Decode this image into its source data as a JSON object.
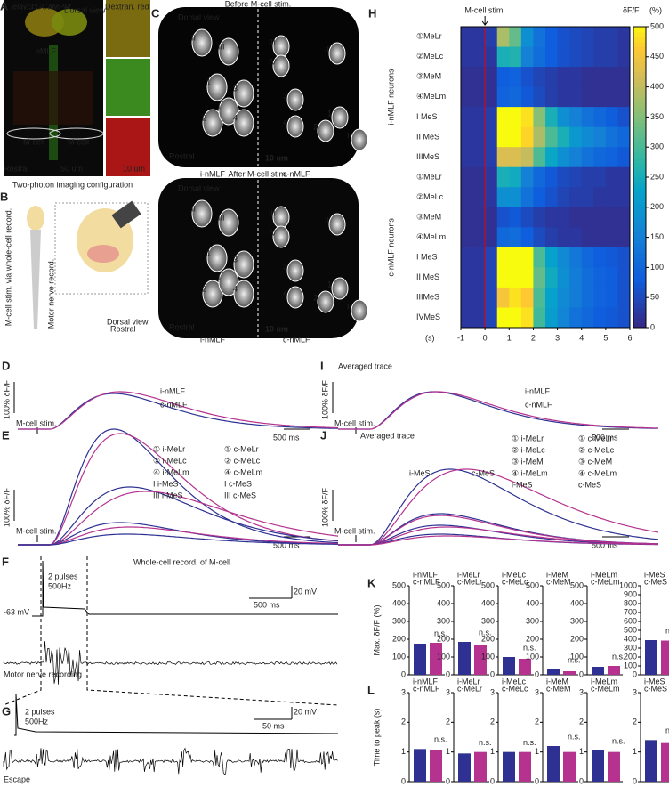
{
  "colors": {
    "i": "#2e3192",
    "c": "#b5338f"
  },
  "A": {
    "label": "A",
    "gcamp": "elavl3:GCaMP6f",
    "dextran": "Dextran. red",
    "dorsal": "Dorsal view",
    "nmlf": "nMLF",
    "mcell_left": "M-cell",
    "mcell_right": "M-cell",
    "rostral": "Rostral",
    "scale1": "50 um",
    "scale2": "10 um"
  },
  "B": {
    "label": "B",
    "title": "Two-photon imaging configuration",
    "stim": "M-cell stim. via whole-cell record.",
    "motor": "Motor nerve record.",
    "dorsal": "Dorsal view",
    "rostral": "Rostral"
  },
  "C": {
    "label": "C",
    "before": "Before M-cell stim.",
    "after": "After M-cell stim.",
    "dorsal": "Dorsal view",
    "rostral": "Rostral",
    "scale": "10 um",
    "left": "i-nMLF",
    "right": "c-nMLF",
    "left_marks": [
      "II",
      "III",
      "1",
      "3",
      "2",
      "I",
      "4"
    ],
    "right_marks": [
      "III",
      "IV",
      "II",
      "3",
      "4",
      "1",
      "2",
      "I"
    ]
  },
  "H": {
    "label": "H",
    "stim": "M-cell stim.",
    "unit": "δF/F",
    "unit_pct": "(%)",
    "group_i": "i-nMLF neurons",
    "group_c": "c-nMLF neurons",
    "xlabel": "(s)",
    "xlim": [
      -1,
      6
    ],
    "xticks": [
      -1,
      0,
      1,
      2,
      3,
      4,
      5,
      6
    ],
    "clim": [
      0,
      500
    ],
    "cticks": [
      0,
      50,
      100,
      150,
      200,
      250,
      300,
      350,
      400,
      450,
      500
    ],
    "rows_i": [
      {
        "label": "①MeLr",
        "values": [
          20,
          20,
          30,
          380,
          320,
          180,
          120,
          80,
          60,
          50,
          40,
          30,
          30,
          20
        ]
      },
      {
        "label": "②MeLc",
        "values": [
          20,
          20,
          20,
          250,
          260,
          150,
          110,
          80,
          60,
          50,
          40,
          30,
          30,
          20
        ]
      },
      {
        "label": "③MeM",
        "values": [
          10,
          10,
          10,
          80,
          90,
          60,
          40,
          30,
          20,
          20,
          10,
          10,
          10,
          10
        ]
      },
      {
        "label": "④MeLm",
        "values": [
          10,
          10,
          10,
          90,
          100,
          70,
          50,
          30,
          20,
          20,
          10,
          10,
          10,
          10
        ]
      },
      {
        "label": "I MeS",
        "values": [
          20,
          20,
          30,
          500,
          500,
          480,
          350,
          250,
          180,
          150,
          120,
          100,
          80,
          60
        ]
      },
      {
        "label": "II MeS",
        "values": [
          20,
          20,
          30,
          500,
          500,
          470,
          380,
          300,
          250,
          200,
          170,
          150,
          120,
          100
        ]
      },
      {
        "label": "IIIMeS",
        "values": [
          20,
          20,
          30,
          420,
          420,
          400,
          300,
          230,
          180,
          150,
          120,
          100,
          90,
          70
        ]
      }
    ],
    "rows_c": [
      {
        "label": "①MeLr",
        "values": [
          10,
          10,
          20,
          250,
          240,
          150,
          100,
          70,
          50,
          40,
          30,
          30,
          20,
          20
        ]
      },
      {
        "label": "②MeLc",
        "values": [
          10,
          10,
          20,
          180,
          180,
          120,
          80,
          60,
          40,
          30,
          30,
          20,
          20,
          20
        ]
      },
      {
        "label": "③MeM",
        "values": [
          10,
          10,
          10,
          60,
          70,
          50,
          30,
          20,
          20,
          10,
          10,
          10,
          10,
          10
        ]
      },
      {
        "label": "④MeLm",
        "values": [
          10,
          10,
          10,
          100,
          110,
          80,
          50,
          30,
          20,
          20,
          10,
          10,
          10,
          10
        ]
      },
      {
        "label": "I MeS",
        "values": [
          20,
          20,
          40,
          500,
          500,
          500,
          300,
          220,
          170,
          130,
          100,
          80,
          70,
          60
        ]
      },
      {
        "label": "II MeS",
        "values": [
          20,
          20,
          40,
          500,
          500,
          500,
          320,
          240,
          180,
          140,
          110,
          90,
          80,
          60
        ]
      },
      {
        "label": "IIIMeS",
        "values": [
          20,
          20,
          40,
          450,
          480,
          460,
          300,
          220,
          170,
          140,
          110,
          90,
          80,
          60
        ]
      },
      {
        "label": "IVMeS",
        "values": [
          20,
          20,
          40,
          500,
          500,
          480,
          290,
          210,
          160,
          120,
          100,
          80,
          70,
          60
        ]
      }
    ]
  },
  "D": {
    "label": "D",
    "scale_y": "100% δF/F",
    "stim": "M-cell stim.",
    "i": "i-nMLF",
    "c": "c-nMLF",
    "scale_x": "500 ms"
  },
  "I": {
    "label": "I",
    "title": "Averaged trace",
    "scale_y": "100% δF/F",
    "stim": "M-cell stim.",
    "i": "i-nMLF",
    "c": "c-nMLF",
    "scale_x": "500 ms"
  },
  "E": {
    "label": "E",
    "scale_y": "100% δF/F",
    "stim": "M-cell stim.",
    "scale_x": "500 ms",
    "legend_i": [
      "① i-MeLr",
      "② i-MeLc",
      "④ i-MeLm",
      "I  i-MeS",
      "III i-MeS"
    ],
    "legend_c": [
      "① c-MeLr",
      "② c-MeLc",
      "④ c-MeLm",
      "I  c-MeS",
      "III c-MeS"
    ]
  },
  "J": {
    "label": "J",
    "title": "Averaged trace",
    "scale_y": "100% δF/F",
    "stim": "M-cell stim.",
    "scale_x": "500 ms",
    "legend_i": [
      "① i-MeLr",
      "② i-MeLc",
      "③ i-MeM",
      "④ i-MeLm",
      "i-MeS"
    ],
    "legend_c": [
      "① c-MeLr",
      "② c-MeLc",
      "③ c-MeM",
      "④ c-MeLm",
      "c-MeS"
    ],
    "trace_i": "i-MeS",
    "trace_c": "c-MeS"
  },
  "F": {
    "label": "F",
    "title": "Whole-cell record. of M-cell",
    "pulses": "2 pulses",
    "freq": "500Hz",
    "vm": "-63 mV",
    "scale_y": "20 mV",
    "scale_x": "500 ms",
    "motor": "Motor nerve recording"
  },
  "G": {
    "label": "G",
    "pulses": "2 pulses",
    "freq": "500Hz",
    "scale_y": "20 mV",
    "scale_x": "50 ms",
    "escape": "Escape"
  },
  "K": {
    "label": "K",
    "ylabel": "Max. δF/F (%)",
    "groups": [
      {
        "i": "i-nMLF",
        "c": "c-nMLF",
        "ns": "n.s.",
        "values": [
          175,
          180
        ],
        "ylim": [
          0,
          500
        ],
        "yticks": [
          0,
          100,
          200,
          300,
          400,
          500
        ]
      },
      {
        "i": "i-MeLr",
        "c": "c-MeLr",
        "ns": "n.s.",
        "values": [
          185,
          165
        ],
        "ylim": [
          0,
          500
        ],
        "yticks": [
          0,
          100,
          200,
          300,
          400,
          500
        ]
      },
      {
        "i": "i-MeLc",
        "c": "c-MeLc",
        "ns": "n.s.",
        "values": [
          100,
          90
        ],
        "ylim": [
          0,
          500
        ],
        "yticks": [
          0,
          100,
          200,
          300,
          400,
          500
        ]
      },
      {
        "i": "i-MeM",
        "c": "c-MeM",
        "ns": "n.s.",
        "values": [
          30,
          20
        ],
        "ylim": [
          0,
          500
        ],
        "yticks": [
          0,
          100,
          200,
          300,
          400,
          500
        ]
      },
      {
        "i": "i-MeLm",
        "c": "c-MeLm",
        "ns": "n.s.",
        "values": [
          45,
          50
        ],
        "ylim": [
          0,
          500
        ],
        "yticks": [
          0,
          100,
          200,
          300,
          400,
          500
        ]
      },
      {
        "i": "i-MeS",
        "c": "c-MeS",
        "ns": "n.s.",
        "values": [
          390,
          385
        ],
        "ylim": [
          0,
          1000
        ],
        "yticks": [
          0,
          100,
          200,
          300,
          400,
          500,
          600,
          700,
          800,
          900,
          1000
        ]
      }
    ]
  },
  "L": {
    "label": "L",
    "ylabel": "Time to peak (s)",
    "groups": [
      {
        "i": "i-nMLF",
        "c": "c-nMLF",
        "ns": "n.s.",
        "values": [
          1.1,
          1.05
        ],
        "ylim": [
          0,
          3
        ],
        "yticks": [
          0,
          1,
          2,
          3
        ]
      },
      {
        "i": "i-MeLr",
        "c": "c-MeLr",
        "ns": "n.s.",
        "values": [
          0.95,
          1.0
        ],
        "ylim": [
          0,
          3
        ],
        "yticks": [
          0,
          1,
          2,
          3
        ]
      },
      {
        "i": "i-MeLc",
        "c": "c-MeLc",
        "ns": "n.s.",
        "values": [
          1.0,
          1.0
        ],
        "ylim": [
          0,
          3
        ],
        "yticks": [
          0,
          1,
          2,
          3
        ]
      },
      {
        "i": "i-MeM",
        "c": "c-MeM",
        "ns": "n.s.",
        "values": [
          1.2,
          1.0
        ],
        "ylim": [
          0,
          3
        ],
        "yticks": [
          0,
          1,
          2,
          3
        ]
      },
      {
        "i": "i-MeLm",
        "c": "c-MeLm",
        "ns": "n.s.",
        "values": [
          1.05,
          1.0
        ],
        "ylim": [
          0,
          3
        ],
        "yticks": [
          0,
          1,
          2,
          3
        ]
      },
      {
        "i": "i-MeS",
        "c": "c-MeS",
        "ns": "n.s.",
        "values": [
          1.4,
          1.3
        ],
        "ylim": [
          0,
          3
        ],
        "yticks": [
          0,
          1,
          2,
          3
        ]
      }
    ]
  }
}
